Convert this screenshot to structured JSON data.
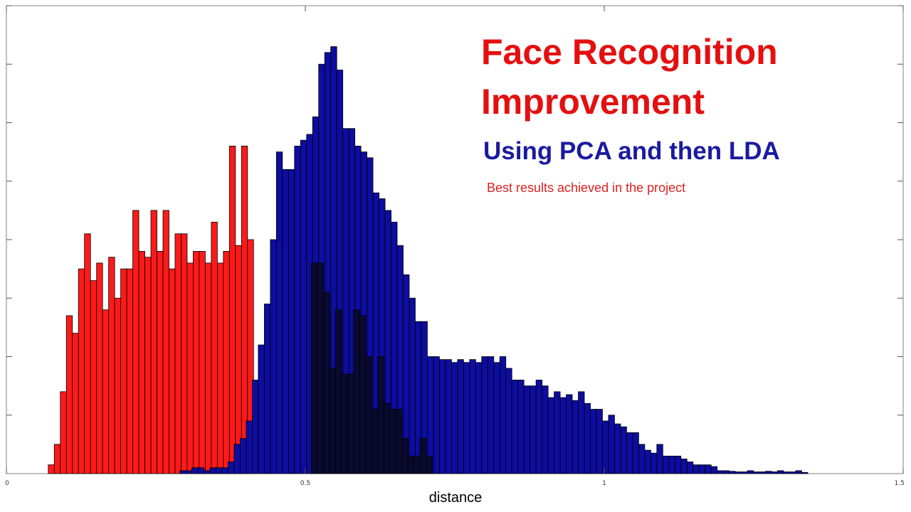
{
  "slide": {
    "title_line1": "Face Recognition",
    "title_line2": "Improvement",
    "subtitle": "Using PCA and then LDA",
    "note": "Best results achieved in the project"
  },
  "colors": {
    "red_series": "#ff1a1a",
    "blue_series": "#0d0da0",
    "overlap": "#0a0a30",
    "title": "#e41010",
    "subtitle": "#1a1aa0"
  },
  "chart_data": {
    "type": "bar",
    "xlabel": "distance",
    "ylabel": "",
    "xlim": [
      0,
      1.5
    ],
    "ylim": [
      0,
      8
    ],
    "x_ticks": [
      0,
      0.5,
      1,
      1.5
    ],
    "x_tick_labels": [
      "0",
      "0.5",
      "1",
      "1.5"
    ],
    "y_ticks": [
      1,
      2,
      3,
      4,
      5,
      6,
      7,
      8
    ],
    "y_tick_labels_shown": false,
    "grid": false,
    "bin_width": 0.0101,
    "series": [
      {
        "bin_start": 0.07,
        "values": [
          0.15,
          0.5,
          1.4,
          2.7,
          2.4,
          3.5,
          4.1,
          3.3,
          3.6,
          2.8,
          3.7,
          3.0,
          3.5,
          3.5,
          4.5,
          3.8,
          3.7,
          4.5,
          3.8,
          4.5,
          3.5,
          4.1,
          4.1,
          3.6,
          3.8,
          3.8,
          3.6,
          4.3,
          3.6,
          3.8,
          5.6,
          3.9,
          5.6,
          4.0
        ]
      },
      {
        "bin_start": 0.29,
        "values": [
          0.05,
          0.05,
          0.1,
          0.1,
          0.05,
          0.1,
          0.1,
          0.1,
          0.2,
          0.5,
          0.6,
          0.9,
          1.6,
          2.2,
          2.9,
          4.0,
          5.5,
          5.2,
          5.2,
          5.6,
          5.7,
          5.8,
          6.1,
          7.0,
          7.2,
          7.3,
          6.9,
          5.9,
          5.9,
          5.6,
          5.5,
          5.4,
          4.8,
          4.7,
          4.5,
          4.3,
          3.9,
          3.4,
          3.0,
          2.6,
          2.6,
          2.0,
          2.0,
          1.95,
          1.95,
          1.9,
          1.95,
          1.9,
          1.95,
          1.9,
          2.0,
          2.0,
          1.9,
          2.0,
          1.8,
          1.6,
          1.6,
          1.5,
          1.5,
          1.6,
          1.5,
          1.3,
          1.4,
          1.3,
          1.35,
          1.25,
          1.4,
          1.2,
          1.1,
          1.1,
          0.9,
          1.0,
          0.85,
          0.8,
          0.7,
          0.7,
          0.5,
          0.4,
          0.35,
          0.5,
          0.3,
          0.3,
          0.3,
          0.25,
          0.2,
          0.15,
          0.15,
          0.15,
          0.12,
          0.05,
          0.05,
          0.04,
          0.03,
          0.03,
          0.05,
          0.03,
          0.03,
          0.04,
          0.03,
          0.05,
          0.03,
          0.03,
          0.05,
          0.02
        ]
      },
      {
        "bin_start": 0.51,
        "values": [
          3.6,
          3.6,
          3.1,
          1.8,
          2.8,
          1.7,
          1.7,
          2.8,
          2.7,
          2.0,
          1.1,
          2.0,
          1.2,
          1.1,
          1.1,
          0.6,
          0.3,
          0.3,
          0.6,
          0.3
        ]
      }
    ]
  }
}
